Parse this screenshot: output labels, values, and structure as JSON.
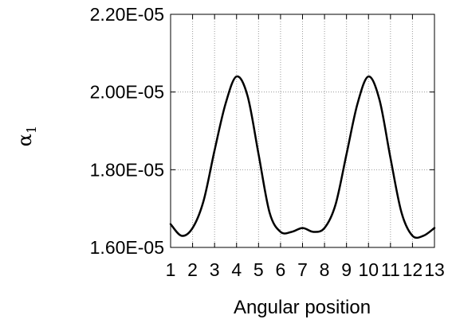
{
  "chart_data": {
    "type": "line",
    "title": "",
    "xlabel": "Angular position",
    "ylabel": "α",
    "ylabel_subscript": "1",
    "x_tick_labels": [
      "1",
      "2",
      "3",
      "4",
      "5",
      "6",
      "7",
      "8",
      "9",
      "10",
      "11",
      "12",
      "13"
    ],
    "y_tick_labels": [
      "1.60E-05",
      "1.80E-05",
      "2.00E-05",
      "2.20E-05"
    ],
    "xlim": [
      1,
      13
    ],
    "ylim": [
      1.6e-05,
      2.2e-05
    ],
    "grid": true,
    "series": [
      {
        "color": "#000000",
        "x": [
          1,
          1.5,
          2,
          2.5,
          3,
          3.5,
          4,
          4.5,
          5,
          5.5,
          6,
          6.5,
          7,
          7.5,
          8,
          8.5,
          9,
          9.5,
          10,
          10.5,
          11,
          11.5,
          12,
          12.5,
          13
        ],
        "y": [
          1.66e-05,
          1.63e-05,
          1.65e-05,
          1.72e-05,
          1.85e-05,
          1.97e-05,
          2.04e-05,
          1.99e-05,
          1.84e-05,
          1.69e-05,
          1.64e-05,
          1.64e-05,
          1.65e-05,
          1.64e-05,
          1.65e-05,
          1.71e-05,
          1.84e-05,
          1.97e-05,
          2.04e-05,
          1.98e-05,
          1.83e-05,
          1.69e-05,
          1.63e-05,
          1.63e-05,
          1.65e-05
        ]
      }
    ]
  }
}
